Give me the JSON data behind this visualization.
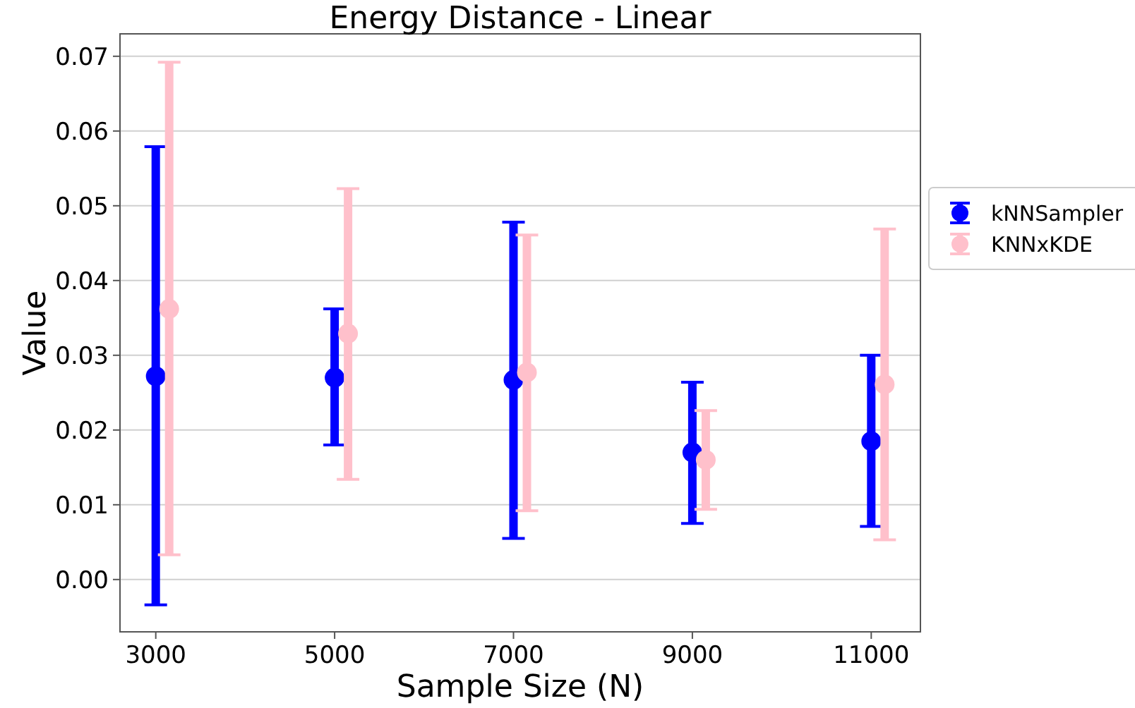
{
  "chart_data": {
    "type": "scatter",
    "title": "Energy Distance - Linear",
    "xlabel": "Sample Size (N)",
    "ylabel": "Value",
    "xlim": [
      2600,
      11550
    ],
    "xticks": [
      3000,
      5000,
      7000,
      9000,
      11000
    ],
    "ylim": [
      -0.007,
      0.073
    ],
    "yticks": [
      {
        "value": 0,
        "label": "0.00"
      },
      {
        "value": 0.01,
        "label": "0.01"
      },
      {
        "value": 0.02,
        "label": "0.02"
      },
      {
        "value": 0.03,
        "label": "0.03"
      },
      {
        "value": 0.04,
        "label": "0.04"
      },
      {
        "value": 0.05,
        "label": "0.05"
      },
      {
        "value": 0.06,
        "label": "0.06"
      },
      {
        "value": 0.07,
        "label": "0.07"
      }
    ],
    "grid": "y",
    "legend": "right",
    "marker": "circle",
    "series": [
      {
        "name": "kNNSampler",
        "color": "#0000ff",
        "x": [
          3000,
          5000,
          7000,
          9000,
          11000
        ],
        "values": [
          0.0272,
          0.027,
          0.0267,
          0.017,
          0.0185
        ],
        "errors": [
          [
            -0.0034,
            0.0579
          ],
          [
            0.018,
            0.0362
          ],
          [
            0.0055,
            0.0478
          ],
          [
            0.0075,
            0.0264
          ],
          [
            0.0071,
            0.03
          ]
        ]
      },
      {
        "name": "KNNxKDE",
        "color": "#ffc0cb",
        "x": [
          3150,
          5150,
          7150,
          9150,
          11150
        ],
        "values": [
          0.0362,
          0.0329,
          0.0277,
          0.016,
          0.0261
        ],
        "errors": [
          [
            0.0033,
            0.0692
          ],
          [
            0.0134,
            0.0523
          ],
          [
            0.0092,
            0.0461
          ],
          [
            0.0094,
            0.0226
          ],
          [
            0.0053,
            0.0469
          ]
        ]
      }
    ]
  }
}
